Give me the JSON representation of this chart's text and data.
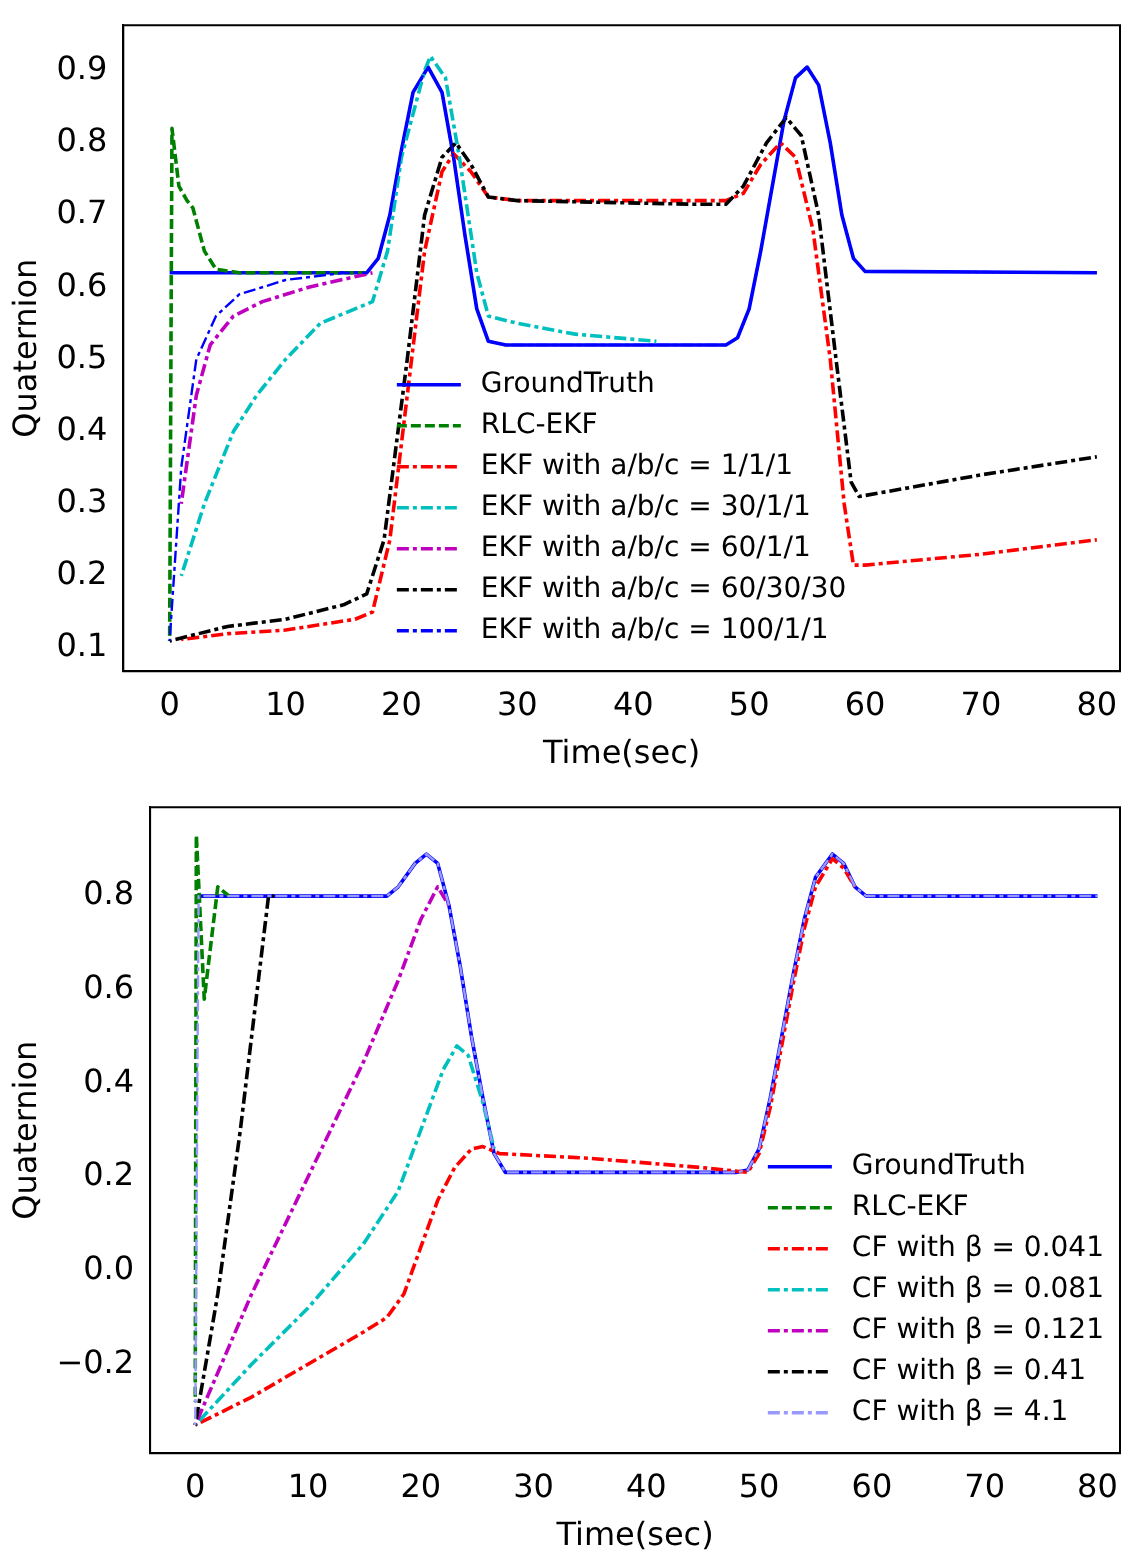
{
  "chart_data": [
    {
      "type": "line",
      "xlabel": "Time(sec)",
      "ylabel": "Quaternion",
      "xlim": [
        -4,
        82
      ],
      "ylim": [
        0.068,
        0.963
      ],
      "xticks": [
        0,
        10,
        20,
        30,
        40,
        50,
        60,
        70,
        80
      ],
      "yticks": [
        0.1,
        0.2,
        0.3,
        0.4,
        0.5,
        0.6,
        0.7,
        0.8,
        0.9
      ],
      "legend": "bottom",
      "series": [
        {
          "name": "GroundTruth",
          "color": "#0000ff",
          "line_style": "solid",
          "x": [
            0,
            17,
            18,
            19,
            20,
            21,
            22.3,
            23.5,
            24.5,
            25.5,
            26.5,
            27.5,
            29,
            48,
            49,
            50,
            51,
            52,
            53,
            54,
            55,
            56,
            57,
            58,
            59,
            60,
            80
          ],
          "values": [
            0.62,
            0.62,
            0.64,
            0.7,
            0.79,
            0.87,
            0.905,
            0.87,
            0.78,
            0.67,
            0.57,
            0.525,
            0.52,
            0.52,
            0.53,
            0.57,
            0.65,
            0.74,
            0.83,
            0.89,
            0.905,
            0.88,
            0.8,
            0.7,
            0.64,
            0.622,
            0.62
          ]
        },
        {
          "name": "RLC-EKF",
          "color": "#008000",
          "line_style": "dashed",
          "x": [
            0,
            0.2,
            0.8,
            1.5,
            2,
            3,
            4,
            6,
            17
          ],
          "values": [
            0.11,
            0.82,
            0.74,
            0.72,
            0.71,
            0.65,
            0.625,
            0.62,
            0.62
          ]
        },
        {
          "name": "EKF with a/b/c = 1/1/1",
          "color": "#ff0000",
          "line_style": "dashdot",
          "x": [
            1,
            5,
            10,
            16,
            17.5,
            19,
            20.5,
            22,
            23.5,
            24.5,
            26,
            27.5,
            30,
            40,
            48,
            49.5,
            51,
            52.7,
            54,
            55.5,
            57,
            58.2,
            59,
            60,
            70,
            80
          ],
          "values": [
            0.112,
            0.12,
            0.125,
            0.14,
            0.15,
            0.25,
            0.45,
            0.65,
            0.76,
            0.785,
            0.76,
            0.725,
            0.72,
            0.72,
            0.72,
            0.73,
            0.77,
            0.8,
            0.78,
            0.68,
            0.5,
            0.3,
            0.215,
            0.215,
            0.23,
            0.25
          ]
        },
        {
          "name": "EKF with a/b/c = 30/1/1",
          "color": "#00bfbf",
          "line_style": "dashdot",
          "x": [
            1,
            3,
            5.5,
            7.5,
            10,
            13,
            16,
            17.5,
            18.8,
            20,
            22,
            22.5,
            23.8,
            25,
            26.5,
            27.5,
            30,
            35,
            42
          ],
          "values": [
            0.2,
            0.3,
            0.4,
            0.45,
            0.5,
            0.55,
            0.57,
            0.58,
            0.65,
            0.78,
            0.9,
            0.92,
            0.89,
            0.78,
            0.62,
            0.56,
            0.55,
            0.535,
            0.525
          ]
        },
        {
          "name": "EKF with a/b/c = 60/1/1",
          "color": "#bf00bf",
          "line_style": "dashdot",
          "x": [
            1,
            2.3,
            3.5,
            5.5,
            8,
            12,
            17.5
          ],
          "values": [
            0.3,
            0.45,
            0.52,
            0.56,
            0.58,
            0.6,
            0.62
          ]
        },
        {
          "name": "EKF with a/b/c = 60/30/30",
          "color": "#000000",
          "line_style": "dashdot",
          "x": [
            0,
            5,
            10,
            15,
            17,
            18.5,
            20.5,
            22,
            23.5,
            24.7,
            26,
            27.5,
            30,
            45,
            48,
            49.5,
            51.5,
            53.2,
            54.5,
            56,
            57.5,
            58.8,
            59.5,
            63,
            70,
            80
          ],
          "values": [
            0.11,
            0.13,
            0.14,
            0.16,
            0.175,
            0.25,
            0.5,
            0.7,
            0.78,
            0.8,
            0.77,
            0.725,
            0.72,
            0.715,
            0.715,
            0.74,
            0.8,
            0.835,
            0.81,
            0.7,
            0.5,
            0.33,
            0.31,
            0.32,
            0.34,
            0.365
          ]
        },
        {
          "name": "EKF with a/b/c = 100/1/1",
          "color": "#0000ff",
          "line_style": "dashdot",
          "x": [
            0,
            1,
            2.3,
            4,
            6,
            10,
            15,
            17,
            18,
            19,
            20,
            21,
            22.3,
            23.5,
            24.5,
            25.5,
            26.5,
            27.5,
            29,
            48,
            49,
            50,
            51,
            52,
            53,
            54,
            55,
            56,
            57,
            58,
            59,
            60,
            80
          ],
          "values": [
            0.11,
            0.35,
            0.5,
            0.56,
            0.59,
            0.61,
            0.62,
            0.62,
            0.64,
            0.7,
            0.79,
            0.87,
            0.905,
            0.87,
            0.78,
            0.67,
            0.57,
            0.525,
            0.52,
            0.52,
            0.53,
            0.57,
            0.65,
            0.74,
            0.83,
            0.89,
            0.905,
            0.88,
            0.8,
            0.7,
            0.64,
            0.622,
            0.62
          ]
        }
      ]
    },
    {
      "type": "line",
      "xlabel": "Time(sec)",
      "ylabel": "Quaternion",
      "xlim": [
        -4,
        82
      ],
      "ylim": [
        -0.39,
        0.99
      ],
      "xticks": [
        0,
        10,
        20,
        30,
        40,
        50,
        60,
        70,
        80
      ],
      "yticks": [
        {
          "value": -0.2,
          "label": "−0.2"
        },
        {
          "value": 0,
          "label": "0.0"
        },
        0.2,
        0.4,
        0.6,
        0.8
      ],
      "legend": "bottom right",
      "series": [
        {
          "name": "GroundTruth",
          "color": "#0000ff",
          "line_style": "solid",
          "x": [
            0,
            17,
            18,
            19.5,
            20.5,
            21.5,
            22.5,
            23.5,
            24.5,
            25.5,
            26.5,
            27.5,
            30,
            48,
            49,
            50,
            51,
            52,
            53,
            54,
            55,
            56.5,
            57.5,
            58.5,
            59.5,
            80
          ],
          "values": [
            0.8,
            0.8,
            0.82,
            0.87,
            0.89,
            0.87,
            0.78,
            0.65,
            0.5,
            0.37,
            0.25,
            0.21,
            0.21,
            0.21,
            0.215,
            0.26,
            0.37,
            0.5,
            0.63,
            0.75,
            0.84,
            0.89,
            0.87,
            0.82,
            0.8,
            0.8
          ]
        },
        {
          "name": "RLC-EKF",
          "color": "#008000",
          "line_style": "dashed",
          "x": [
            0,
            0.1,
            0.8,
            2,
            3
          ],
          "values": [
            -0.28,
            0.93,
            0.58,
            0.82,
            0.8
          ]
        },
        {
          "name": "CF with β = 0.041",
          "color": "#ff0000",
          "line_style": "dashdot",
          "x": [
            0,
            5,
            10,
            15,
            17,
            18.5,
            20,
            21.5,
            23,
            24.5,
            25.5,
            27,
            35,
            45,
            49,
            50,
            51,
            52,
            53,
            54,
            55,
            56.5,
            57.5,
            58.5
          ],
          "values": [
            -0.33,
            -0.27,
            -0.2,
            -0.13,
            -0.1,
            -0.05,
            0.05,
            0.15,
            0.22,
            0.26,
            0.265,
            0.25,
            0.24,
            0.22,
            0.21,
            0.25,
            0.35,
            0.48,
            0.61,
            0.73,
            0.82,
            0.88,
            0.86,
            0.82
          ]
        },
        {
          "name": "CF with β = 0.081",
          "color": "#00bfbf",
          "line_style": "dashdot",
          "x": [
            0,
            5,
            10,
            15,
            18,
            20,
            22,
            23.2,
            24.2,
            25.5,
            26.5
          ],
          "values": [
            -0.33,
            -0.2,
            -0.08,
            0.06,
            0.17,
            0.3,
            0.43,
            0.48,
            0.46,
            0.36,
            0.26
          ]
        },
        {
          "name": "CF with β = 0.121",
          "color": "#bf00bf",
          "line_style": "dashdot",
          "x": [
            0,
            5,
            10,
            15,
            18,
            20,
            21.5,
            22.5
          ],
          "values": [
            -0.33,
            -0.05,
            0.2,
            0.45,
            0.62,
            0.75,
            0.82,
            0.78
          ]
        },
        {
          "name": "CF with β = 0.41",
          "color": "#000000",
          "line_style": "dashdot",
          "x": [
            0,
            2,
            4,
            5.5,
            6.5,
            7
          ],
          "values": [
            -0.33,
            -0.05,
            0.3,
            0.6,
            0.8,
            0.8
          ]
        },
        {
          "name": "CF with β = 4.1",
          "color": "#9999ff",
          "line_style": "dashdot",
          "x": [
            0,
            0.3,
            17,
            18,
            19.5,
            20.5,
            21.5,
            22.5,
            23.5,
            24.5,
            25.5,
            26.5,
            27.5,
            30,
            48,
            49,
            50,
            51,
            52,
            53,
            54,
            55,
            56.5,
            57.5,
            58.5,
            59.5,
            80
          ],
          "values": [
            -0.33,
            0.8,
            0.8,
            0.82,
            0.87,
            0.89,
            0.87,
            0.78,
            0.65,
            0.5,
            0.37,
            0.25,
            0.21,
            0.21,
            0.21,
            0.215,
            0.26,
            0.37,
            0.5,
            0.63,
            0.75,
            0.84,
            0.89,
            0.87,
            0.82,
            0.8,
            0.8
          ]
        }
      ]
    }
  ]
}
